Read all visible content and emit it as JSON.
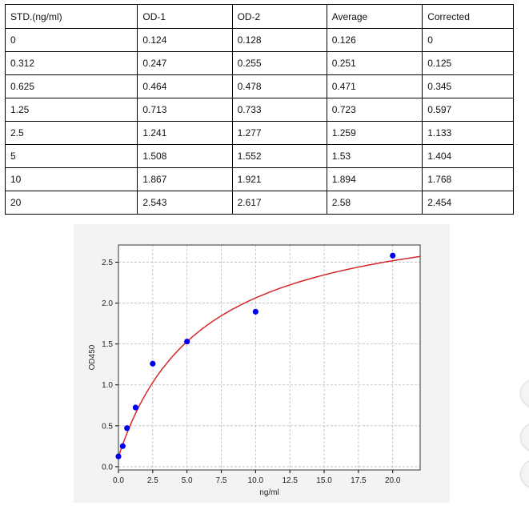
{
  "table": {
    "headers": [
      "STD.(ng/ml)",
      "OD-1",
      "OD-2",
      "Average",
      "Corrected"
    ],
    "rows": [
      [
        "0",
        "0.124",
        "0.128",
        "0.126",
        "0"
      ],
      [
        "0.312",
        "0.247",
        "0.255",
        "0.251",
        "0.125"
      ],
      [
        "0.625",
        "0.464",
        "0.478",
        "0.471",
        "0.345"
      ],
      [
        "1.25",
        "0.713",
        "0.733",
        "0.723",
        "0.597"
      ],
      [
        "2.5",
        "1.241",
        "1.277",
        "1.259",
        "1.133"
      ],
      [
        "5",
        "1.508",
        "1.552",
        "1.53",
        "1.404"
      ],
      [
        "10",
        "1.867",
        "1.921",
        "1.894",
        "1.768"
      ],
      [
        "20",
        "2.543",
        "2.617",
        "2.58",
        "2.454"
      ]
    ]
  },
  "chart_data": {
    "type": "scatter",
    "xlabel": "ng/ml",
    "ylabel": "OD450",
    "xlim": [
      0,
      22
    ],
    "ylim": [
      -0.04,
      2.71
    ],
    "xticks": [
      "0.0",
      "2.5",
      "5.0",
      "7.5",
      "10.0",
      "12.5",
      "15.0",
      "17.5",
      "20.0"
    ],
    "yticks": [
      "0.0",
      "0.5",
      "1.0",
      "1.5",
      "2.0",
      "2.5"
    ],
    "grid": true,
    "points": {
      "x": [
        0,
        0.312,
        0.625,
        1.25,
        2.5,
        5,
        10,
        20
      ],
      "y": [
        0.126,
        0.251,
        0.471,
        0.723,
        1.259,
        1.53,
        1.894,
        2.58
      ],
      "color": "#0000ee"
    },
    "fit_curve": {
      "color": "#d62728",
      "model": "y = a + b*x/(c+x)",
      "a": 0.12,
      "b": 3.13,
      "c": 6.11
    }
  }
}
